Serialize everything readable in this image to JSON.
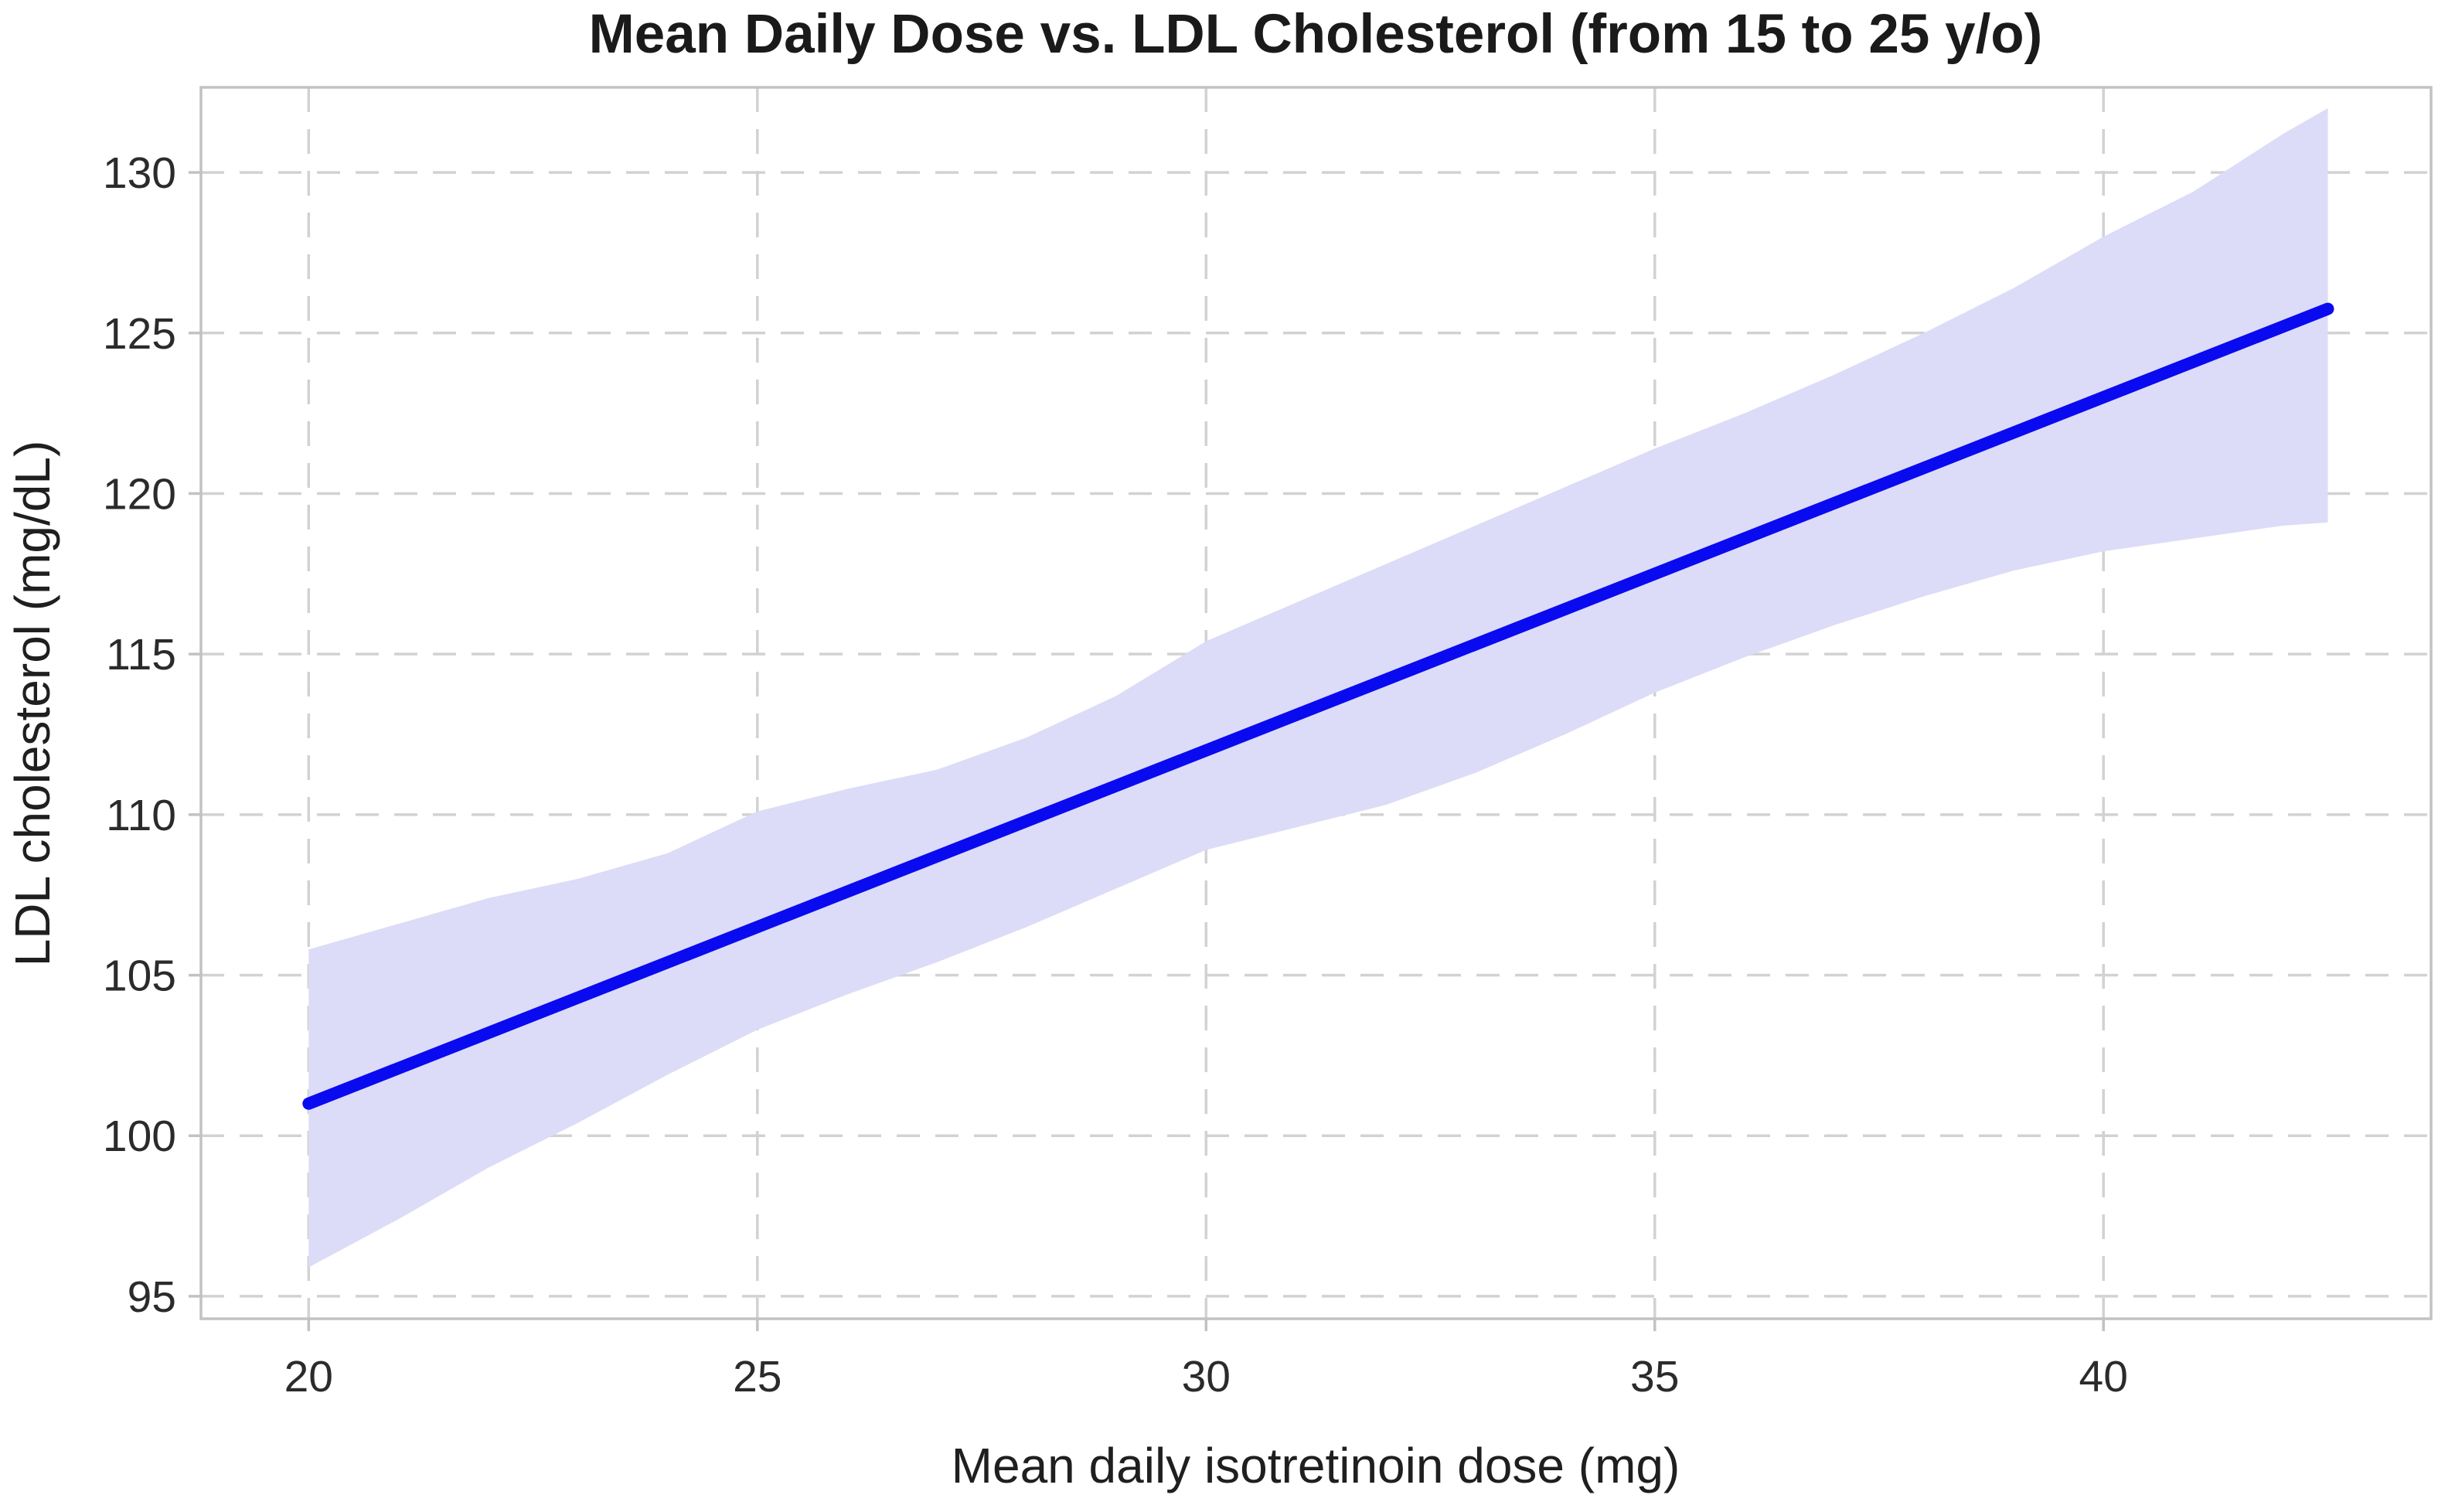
{
  "chart_data": {
    "type": "line",
    "title": "Mean Daily Dose vs. LDL Cholesterol (from 15 to 25 y/o)",
    "xlabel": "Mean daily isotretinoin dose (mg)",
    "ylabel": "LDL cholesterol (mg/dL)",
    "x_ticks": [
      20,
      25,
      30,
      35,
      40
    ],
    "y_ticks": [
      95,
      100,
      105,
      110,
      115,
      120,
      125,
      130
    ],
    "xlim": [
      18.8,
      43.65
    ],
    "ylim": [
      94.3,
      132.65
    ],
    "grid": true,
    "grid_style": "dashed",
    "legend": false,
    "series": [
      {
        "name": "confidence-band",
        "type": "area",
        "fill": "#dcdcf8",
        "x": [
          20,
          21,
          22,
          23,
          24,
          25,
          26,
          27,
          28,
          29,
          30,
          31,
          32,
          33,
          34,
          35,
          36,
          37,
          38,
          39,
          40,
          41,
          42,
          42.5
        ],
        "upper": [
          105.8,
          106.6,
          107.4,
          108.0,
          108.8,
          110.1,
          110.8,
          111.4,
          112.4,
          113.7,
          115.4,
          116.6,
          117.8,
          119.0,
          120.2,
          121.4,
          122.5,
          123.7,
          125.0,
          126.4,
          128.0,
          129.4,
          131.2,
          132.0
        ],
        "lower": [
          95.9,
          97.4,
          99.0,
          100.4,
          101.9,
          103.3,
          104.4,
          105.4,
          106.5,
          107.7,
          108.9,
          109.6,
          110.3,
          111.3,
          112.5,
          113.8,
          114.9,
          115.9,
          116.8,
          117.6,
          118.2,
          118.6,
          119.0,
          119.1
        ]
      },
      {
        "name": "regression-line",
        "type": "line",
        "color": "#0a0af0",
        "x": [
          20,
          42.5
        ],
        "y": [
          101.0,
          125.75
        ]
      }
    ]
  },
  "colors": {
    "background": "#ffffff",
    "grid": "#d2d2d2",
    "spine": "#c2c2c2",
    "tick_mark": "#c2c2c2",
    "band": "#dcdcf8",
    "line": "#0a0af0",
    "title_text": "#1a1a1a",
    "tick_text": "#2b2b2b",
    "label_text": "#1f1f1f"
  }
}
